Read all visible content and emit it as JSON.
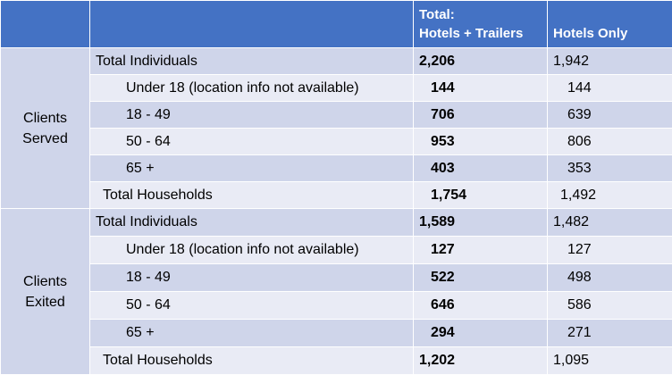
{
  "header": {
    "total_line1": "Total:",
    "total_line2": "Hotels + Trailers",
    "hotels_only": "Hotels Only"
  },
  "served": {
    "group_line1": "Clients",
    "group_line2": "Served",
    "rows": [
      {
        "label": "Total Individuals",
        "total": "2,206",
        "hotels": "1,942"
      },
      {
        "label": "Under 18 (location info not available)",
        "total": "144",
        "hotels": "144"
      },
      {
        "label": "18  - 49",
        "total": "706",
        "hotels": "639"
      },
      {
        "label": "50 - 64",
        "total": "953",
        "hotels": "806"
      },
      {
        "label": "65 +",
        "total": "403",
        "hotels": "353"
      },
      {
        "label": "Total Households",
        "total": "1,754",
        "hotels": "1,492"
      }
    ]
  },
  "exited": {
    "group_line1": "Clients",
    "group_line2": "Exited",
    "rows": [
      {
        "label": "Total Individuals",
        "total": "1,589",
        "hotels": "1,482"
      },
      {
        "label": "Under 18 (location info not available)",
        "total": "127",
        "hotels": "127"
      },
      {
        "label": "18 - 49",
        "total": "522",
        "hotels": "498"
      },
      {
        "label": "50 - 64",
        "total": "646",
        "hotels": "586"
      },
      {
        "label": "65 +",
        "total": "294",
        "hotels": "271"
      },
      {
        "label": "Total Households",
        "total": "1,202",
        "hotels": "1,095"
      }
    ]
  }
}
